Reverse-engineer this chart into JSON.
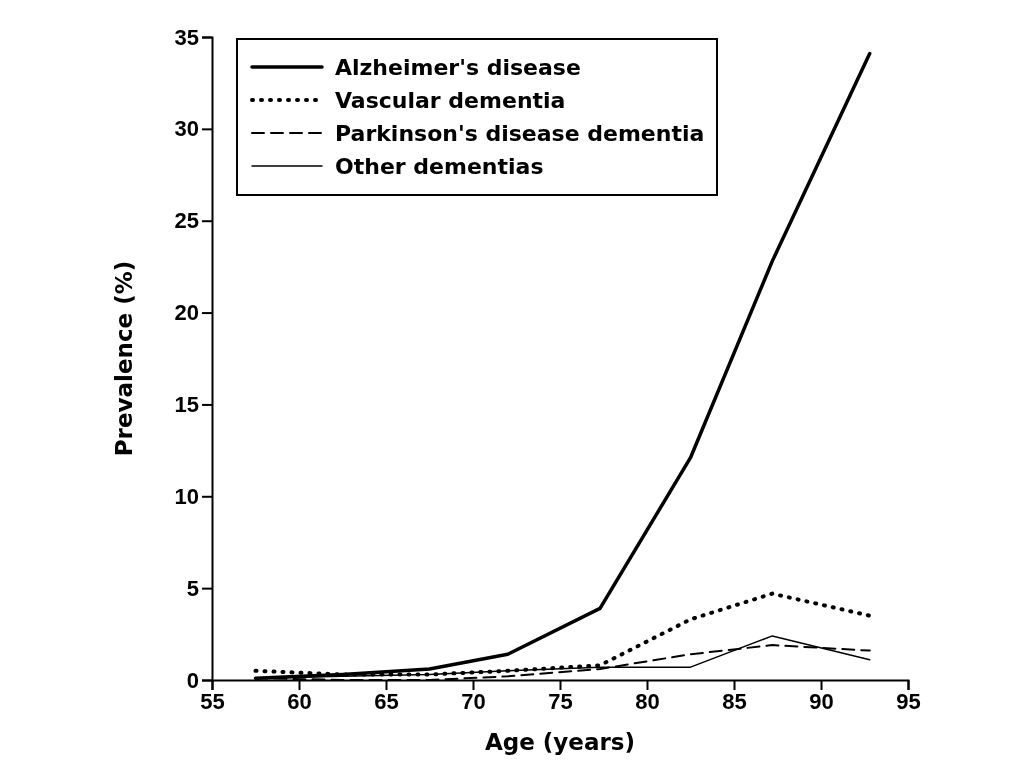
{
  "chart_data": {
    "type": "line",
    "xlabel": "Age (years)",
    "ylabel": "Prevalence (%)",
    "xlim": [
      55,
      95
    ],
    "xticks": [
      55,
      60,
      65,
      70,
      75,
      80,
      85,
      90,
      95
    ],
    "ylim": [
      0,
      35
    ],
    "yticks": [
      0,
      5,
      10,
      15,
      20,
      25,
      30,
      35
    ],
    "grid": false,
    "legend": "top left",
    "marker": "none",
    "series": [
      {
        "name": "Alzheimer's disease",
        "color": "#000000",
        "line_style": "solid",
        "x": [
          57.5,
          62.5,
          67.5,
          72,
          77.3,
          82.5,
          87.2,
          92.8
        ],
        "values": [
          0.1,
          0.3,
          0.6,
          1.4,
          3.9,
          12.1,
          22.8,
          34.1
        ]
      },
      {
        "name": "Vascular dementia",
        "color": "#000000",
        "line_style": "dotted",
        "x": [
          57.5,
          62.5,
          67.5,
          72,
          77.3,
          82.5,
          87.2,
          92.8
        ],
        "values": [
          0.5,
          0.3,
          0.3,
          0.5,
          0.8,
          3.3,
          4.7,
          3.5
        ]
      },
      {
        "name": "Parkinson's disease dementia",
        "color": "#000000",
        "line_style": "dashed",
        "x": [
          57.5,
          62.5,
          67.5,
          72,
          77.3,
          82.5,
          87.2,
          92.8
        ],
        "values": [
          0.1,
          0,
          0,
          0.2,
          0.6,
          1.4,
          1.9,
          1.6
        ]
      },
      {
        "name": "Other dementias",
        "color": "#000000",
        "line_style": "solid",
        "x": [
          57.5,
          62.5,
          67.5,
          72,
          77.3,
          82.5,
          87.2,
          92.8
        ],
        "values": [
          0.1,
          0.2,
          0.3,
          0.5,
          0.7,
          0.7,
          2.4,
          1.1
        ]
      }
    ]
  }
}
